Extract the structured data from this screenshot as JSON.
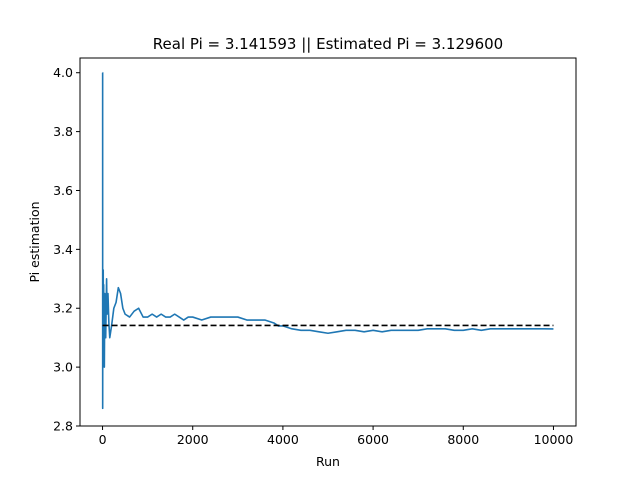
{
  "chart_data": {
    "type": "line",
    "title": "Real Pi = 3.141593 || Estimated Pi = 3.129600",
    "xlabel": "Run",
    "ylabel": "Pi estimation",
    "xlim": [
      -500,
      10500
    ],
    "ylim": [
      2.8,
      4.05
    ],
    "xticks": [
      0,
      2000,
      4000,
      6000,
      8000,
      10000
    ],
    "xtick_labels": [
      "0",
      "2000",
      "4000",
      "6000",
      "8000",
      "10000"
    ],
    "yticks": [
      2.8,
      3.0,
      3.2,
      3.4,
      3.6,
      3.8,
      4.0
    ],
    "ytick_labels": [
      "2.8",
      "3.0",
      "3.2",
      "3.4",
      "3.6",
      "3.8",
      "4.0"
    ],
    "grid": false,
    "colors": {
      "estimate": "#1f77b4",
      "reference": "#000000"
    },
    "series": [
      {
        "style": "solid",
        "color": "#1f77b4",
        "x": [
          1,
          2,
          3,
          4,
          5,
          8,
          10,
          15,
          20,
          25,
          30,
          40,
          50,
          60,
          70,
          80,
          90,
          100,
          120,
          140,
          160,
          180,
          200,
          250,
          300,
          350,
          400,
          450,
          500,
          600,
          700,
          800,
          900,
          1000,
          1100,
          1200,
          1300,
          1400,
          1500,
          1600,
          1700,
          1800,
          1900,
          2000,
          2200,
          2400,
          2600,
          2800,
          3000,
          3200,
          3400,
          3600,
          3800,
          3900,
          4000,
          4200,
          4400,
          4600,
          4800,
          5000,
          5200,
          5400,
          5600,
          5800,
          6000,
          6200,
          6400,
          6600,
          6800,
          7000,
          7200,
          7400,
          7600,
          7800,
          8000,
          8200,
          8400,
          8600,
          8800,
          9000,
          9200,
          9400,
          9600,
          9800,
          10000
        ],
        "y": [
          4.0,
          4.0,
          2.86,
          3.0,
          3.2,
          3.0,
          3.2,
          3.33,
          3.1,
          3.28,
          3.05,
          3.0,
          3.25,
          3.15,
          3.1,
          3.2,
          3.3,
          3.18,
          3.25,
          3.15,
          3.1,
          3.12,
          3.14,
          3.2,
          3.22,
          3.27,
          3.25,
          3.2,
          3.18,
          3.17,
          3.19,
          3.2,
          3.17,
          3.17,
          3.18,
          3.17,
          3.18,
          3.17,
          3.17,
          3.18,
          3.17,
          3.16,
          3.17,
          3.17,
          3.16,
          3.17,
          3.17,
          3.17,
          3.17,
          3.16,
          3.16,
          3.16,
          3.15,
          3.14,
          3.14,
          3.13,
          3.125,
          3.125,
          3.12,
          3.115,
          3.12,
          3.125,
          3.125,
          3.12,
          3.125,
          3.12,
          3.125,
          3.125,
          3.125,
          3.125,
          3.13,
          3.13,
          3.13,
          3.125,
          3.125,
          3.13,
          3.125,
          3.13,
          3.13,
          3.13,
          3.13,
          3.13,
          3.13,
          3.13,
          3.1296
        ]
      },
      {
        "style": "dashed",
        "color": "#000000",
        "x": [
          0,
          10000
        ],
        "y": [
          3.141593,
          3.141593
        ]
      }
    ]
  }
}
